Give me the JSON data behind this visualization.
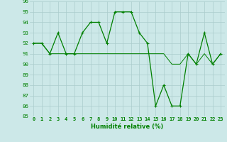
{
  "line1_x": [
    0,
    1,
    2,
    3,
    4,
    5,
    6,
    7,
    8,
    9,
    10,
    11,
    12,
    13,
    14,
    15,
    16,
    17,
    18,
    19,
    20,
    21,
    22,
    23
  ],
  "line1_y": [
    92,
    92,
    91,
    93,
    91,
    91,
    93,
    94,
    94,
    92,
    95,
    95,
    95,
    93,
    92,
    86,
    88,
    86,
    86,
    91,
    90,
    93,
    90,
    91
  ],
  "line2_x": [
    0,
    1,
    2,
    3,
    4,
    5,
    6,
    7,
    8,
    9,
    10,
    11,
    12,
    13,
    14,
    15,
    16,
    17,
    18,
    19,
    20,
    21,
    22,
    23
  ],
  "line2_y": [
    92,
    92,
    91,
    91,
    91,
    91,
    91,
    91,
    91,
    91,
    91,
    91,
    91,
    91,
    91,
    91,
    91,
    90,
    90,
    91,
    90,
    91,
    90,
    91
  ],
  "line_color": "#008000",
  "bg_color": "#cce8e8",
  "grid_color": "#aacccc",
  "xlabel": "Humidité relative (%)",
  "ylim": [
    85,
    96
  ],
  "xlim": [
    -0.5,
    23.5
  ],
  "yticks": [
    85,
    86,
    87,
    88,
    89,
    90,
    91,
    92,
    93,
    94,
    95,
    96
  ],
  "xticks": [
    0,
    1,
    2,
    3,
    4,
    5,
    6,
    7,
    8,
    9,
    10,
    11,
    12,
    13,
    14,
    15,
    16,
    17,
    18,
    19,
    20,
    21,
    22,
    23
  ],
  "marker": "+",
  "markersize": 3,
  "linewidth1": 0.9,
  "linewidth2": 0.7,
  "tick_fontsize": 5.0,
  "xlabel_fontsize": 6.0
}
